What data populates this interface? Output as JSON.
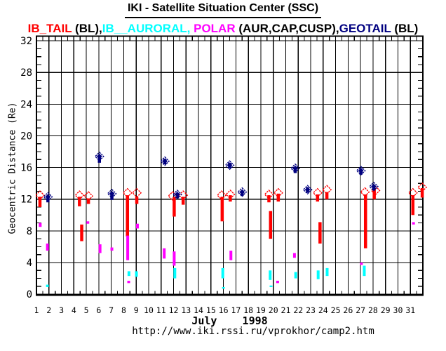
{
  "page": {
    "title": "IKI - Satellite Situation Center (SSC)",
    "footer_url": "http://www.iki.rssi.ru/vprokhor/camp2.htm"
  },
  "legend": {
    "segments": [
      {
        "text": "IB_TAIL",
        "color": "#ff0000"
      },
      {
        "text": " (BL),",
        "color": "#000000"
      },
      {
        "text": "IB__AURORAL,",
        "color": "#00ffff"
      },
      {
        "text": " POLAR",
        "color": "#ff00ff"
      },
      {
        "text": " (AUR,CAP,CUSP),",
        "color": "#000000"
      },
      {
        "text": "GEOTAIL",
        "color": "#000080"
      },
      {
        "text": " (BL)",
        "color": "#000000"
      }
    ]
  },
  "chart_data": {
    "type": "scatter",
    "title": "IKI - Satellite Situation Center (SSC)",
    "xlabel": "July    1998",
    "ylabel": "Geocentric Distance (Re)",
    "x_range": [
      1,
      32
    ],
    "y_range": [
      0,
      32
    ],
    "x_tick_labels": [
      "1",
      "2",
      "3",
      "4",
      "5",
      "6",
      "7",
      "8",
      "9",
      "10",
      "11",
      "12",
      "13",
      "14",
      "15",
      "16",
      "17",
      "18",
      "19",
      "20",
      "21",
      "22",
      "23",
      "24",
      "25",
      "26",
      "27",
      "28",
      "29",
      "30",
      "31"
    ],
    "y_tick_values": [
      0,
      4,
      8,
      12,
      16,
      20,
      24,
      28,
      32
    ],
    "y_minor_step": 1,
    "x_minor_step": 0.5,
    "grid": true,
    "legend_position": "top",
    "series": [
      {
        "name": "IB_TAIL (BL)",
        "color": "#ff0000",
        "marker": "open-diamond",
        "diamonds": [
          [
            1.28,
            12.5
          ],
          [
            4.45,
            12.5
          ],
          [
            5.17,
            12.4
          ],
          [
            8.3,
            12.8
          ],
          [
            9.05,
            12.8
          ],
          [
            11.92,
            12.4
          ],
          [
            12.77,
            12.5
          ],
          [
            15.85,
            12.5
          ],
          [
            16.55,
            12.6
          ],
          [
            19.65,
            12.6
          ],
          [
            20.4,
            12.8
          ],
          [
            23.55,
            12.8
          ],
          [
            24.3,
            13.2
          ],
          [
            27.35,
            12.9
          ],
          [
            28.2,
            13.1
          ],
          [
            31.2,
            12.8
          ],
          [
            31.95,
            13.5
          ]
        ],
        "segments": [
          [
            1.28,
            11.0,
            12.3
          ],
          [
            4.45,
            11.1,
            12.3
          ],
          [
            4.63,
            6.7,
            8.8
          ],
          [
            5.17,
            11.4,
            12.1
          ],
          [
            8.3,
            7.3,
            12.5
          ],
          [
            9.05,
            11.4,
            12.3
          ],
          [
            12.05,
            9.8,
            12.3
          ],
          [
            12.77,
            11.3,
            12.3
          ],
          [
            15.9,
            9.2,
            12.3
          ],
          [
            16.55,
            11.7,
            12.5
          ],
          [
            19.65,
            11.6,
            12.5
          ],
          [
            19.78,
            7.0,
            10.5
          ],
          [
            20.4,
            11.7,
            12.7
          ],
          [
            23.55,
            11.7,
            12.6
          ],
          [
            23.75,
            6.4,
            9.1
          ],
          [
            24.3,
            12.0,
            12.9
          ],
          [
            27.4,
            5.8,
            12.6
          ],
          [
            28.1,
            12.0,
            13.4
          ],
          [
            31.2,
            10.0,
            12.5
          ],
          [
            31.95,
            12.2,
            13.4
          ]
        ]
      },
      {
        "name": "IB__AURORAL",
        "color": "#00ffff",
        "marker": "none",
        "diamonds": [],
        "segments": [
          [
            1.88,
            0.9,
            1.2
          ],
          [
            8.42,
            2.3,
            2.9
          ],
          [
            9.02,
            2.2,
            2.9
          ],
          [
            12.1,
            2.0,
            3.3
          ],
          [
            15.95,
            2.0,
            3.3
          ],
          [
            16.0,
            0.7,
            0.9
          ],
          [
            19.75,
            1.8,
            3.0
          ],
          [
            19.82,
            0.9,
            1.1
          ],
          [
            21.8,
            2.0,
            2.8
          ],
          [
            23.6,
            1.9,
            3.0
          ],
          [
            24.32,
            2.3,
            3.3
          ],
          [
            27.3,
            2.3,
            3.6
          ]
        ]
      },
      {
        "name": "POLAR (AUR,CAP,CUSP)",
        "color": "#ff00ff",
        "marker": "none",
        "diamonds": [],
        "segments": [
          [
            1.3,
            8.5,
            9.0
          ],
          [
            1.88,
            5.5,
            6.4
          ],
          [
            5.12,
            8.9,
            9.2
          ],
          [
            6.1,
            5.2,
            6.3
          ],
          [
            7.05,
            5.5,
            5.9
          ],
          [
            8.32,
            4.3,
            7.4
          ],
          [
            8.4,
            1.4,
            1.7
          ],
          [
            9.1,
            8.3,
            8.9
          ],
          [
            11.25,
            4.5,
            5.8
          ],
          [
            12.05,
            3.6,
            5.4
          ],
          [
            16.6,
            4.3,
            5.5
          ],
          [
            20.35,
            1.4,
            1.7
          ],
          [
            21.7,
            4.6,
            5.2
          ],
          [
            27.07,
            3.7,
            4.0
          ],
          [
            31.25,
            8.8,
            9.1
          ]
        ]
      },
      {
        "name": "GEOTAIL (BL)",
        "color": "#000080",
        "marker": "filled-diamond",
        "diamonds": [
          [
            1.92,
            12.3
          ],
          [
            6.05,
            17.4
          ],
          [
            7.05,
            12.7
          ],
          [
            11.3,
            16.8
          ],
          [
            12.3,
            12.6
          ],
          [
            16.5,
            16.3
          ],
          [
            17.5,
            12.9
          ],
          [
            21.76,
            15.9
          ],
          [
            22.75,
            13.2
          ],
          [
            27.03,
            15.6
          ],
          [
            28.06,
            13.6
          ]
        ],
        "segments": [
          [
            1.92,
            11.6,
            12.3
          ],
          [
            6.05,
            16.6,
            17.3
          ],
          [
            7.05,
            11.9,
            12.6
          ],
          [
            11.3,
            16.4,
            17.1
          ],
          [
            12.3,
            12.1,
            12.8
          ],
          [
            16.5,
            15.9,
            16.6
          ],
          [
            17.5,
            12.4,
            13.1
          ],
          [
            21.76,
            15.3,
            16.1
          ],
          [
            22.75,
            12.8,
            13.5
          ],
          [
            27.03,
            15.1,
            15.9
          ],
          [
            28.06,
            13.1,
            13.8
          ]
        ]
      }
    ]
  }
}
